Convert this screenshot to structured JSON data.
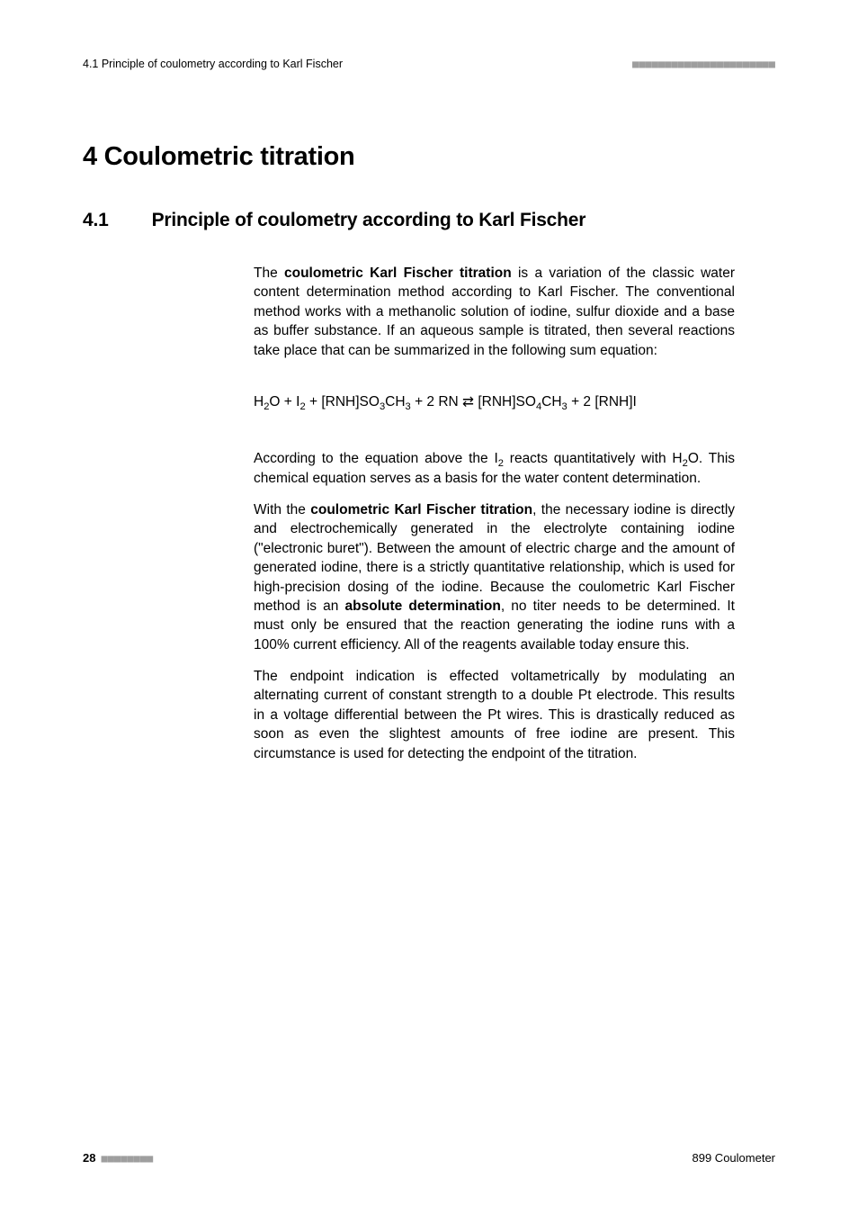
{
  "running_head": {
    "left": "4.1 Principle of coulometry according to Karl Fischer",
    "right": "■■■■■■■■■■■■■■■■■■■■■■"
  },
  "chapter": {
    "label": "4  Coulometric titration"
  },
  "section": {
    "num": "4.1",
    "title": "Principle of coulometry according to Karl Fischer"
  },
  "para1": {
    "t1": "The ",
    "b1": "coulometric Karl Fischer titration",
    "t2": " is a variation of the classic water content determination method according to Karl Fischer. The conventional method works with a methanolic solution of iodine, sulfur dioxide and a base as buffer substance. If an aqueous sample is titrated, then several reactions take place that can be summarized in the following sum equation:"
  },
  "equation": {
    "seg1": "H",
    "sub1": "2",
    "seg2": "O + I",
    "sub2": "2",
    "seg3": " + [RNH]SO",
    "sub3": "3",
    "seg4": "CH",
    "sub4": "3",
    "seg5": " + 2 RN ⇄ [RNH]SO",
    "sub5": "4",
    "seg6": "CH",
    "sub6": "3",
    "seg7": " + 2 [RNH]I"
  },
  "para2": {
    "t1": "According to the equation above the I",
    "sub1": "2",
    "t2": " reacts quantitatively with H",
    "sub2": "2",
    "t3": "O. This chemical equation serves as a basis for the water content determination."
  },
  "para3": {
    "t1": "With the ",
    "b1": "coulometric Karl Fischer titration",
    "t2": ", the necessary iodine is directly and electrochemically generated in the electrolyte containing iodine (\"electronic buret\"). Between the amount of electric charge and the amount of generated iodine, there is a strictly quantitative relationship, which is used for high-precision dosing of the iodine. Because the coulometric Karl Fischer method is an ",
    "b2": "absolute determination",
    "t3": ", no titer needs to be determined. It must only be ensured that the reaction generating the iodine runs with a 100% current efficiency. All of the reagents available today ensure this."
  },
  "para4": {
    "t1": "The endpoint indication is effected voltametrically by modulating an alternating current of constant strength to a double Pt electrode. This results in a voltage differential between the Pt wires. This is drastically reduced as soon as even the slightest amounts of free iodine are present. This circumstance is used for detecting the endpoint of the titration."
  },
  "footer": {
    "page_num": "28",
    "dots": "■■■■■■■■",
    "right": "899 Coulometer"
  }
}
